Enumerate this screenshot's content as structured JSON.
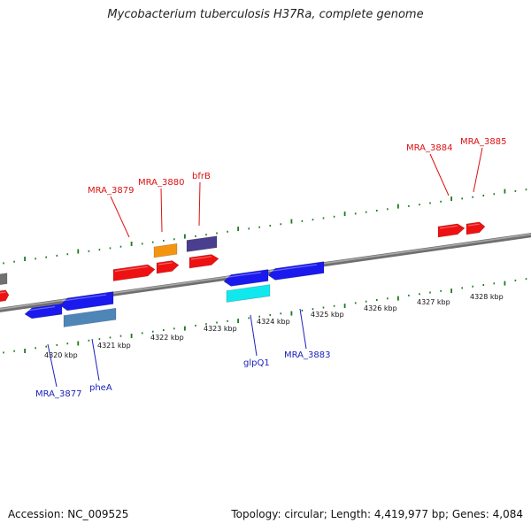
{
  "title": "Mycobacterium tuberculosis H37Ra, complete genome",
  "footer": {
    "accession": "Accession: NC_009525",
    "summary": "Topology: circular; Length: 4,419,977 bp; Genes: 4,084"
  },
  "colors": {
    "backbone": "#8c8c8c",
    "tick": "#1a7d1a",
    "forward_label": "#dd1111",
    "reverse_label": "#1a22bb",
    "red_gene": "#ee1111",
    "blue_gene": "#1a1aee",
    "steelblue_gene": "#4f86b8",
    "cyan_gene": "#11e8ee",
    "orange_gene": "#f39511",
    "purple_gene": "#4a3e8f",
    "gray_gene": "#707070"
  },
  "scale_labels": [
    "4320 kbp",
    "4321 kbp",
    "4322 kbp",
    "4323 kbp",
    "4324 kbp",
    "4325 kbp",
    "4326 kbp",
    "4327 kbp",
    "4328 kbp"
  ],
  "forward_gene_labels": [
    "MRA_3879",
    "MRA_3880",
    "bfrB",
    "MRA_3884",
    "MRA_3885"
  ],
  "reverse_gene_labels": [
    "MRA_3877",
    "pheA",
    "glpQ1",
    "MRA_3883"
  ]
}
